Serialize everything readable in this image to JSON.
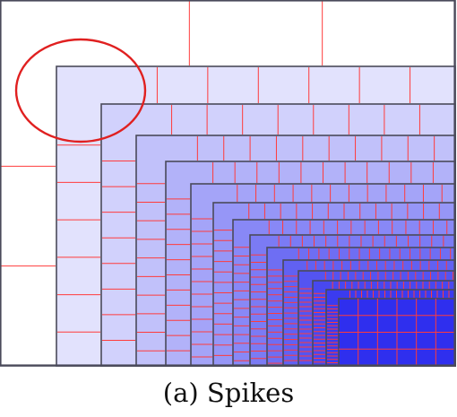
{
  "figure": {
    "caption": "(a) Spikes",
    "levels": 14,
    "colors": {
      "background": "#ffffff",
      "light": "#f7f7ff",
      "deep": "#2f2fee",
      "border": "#4a4a5a",
      "subdivision": "#ff3b3b",
      "highlight_ellipse": "#e02020"
    }
  }
}
